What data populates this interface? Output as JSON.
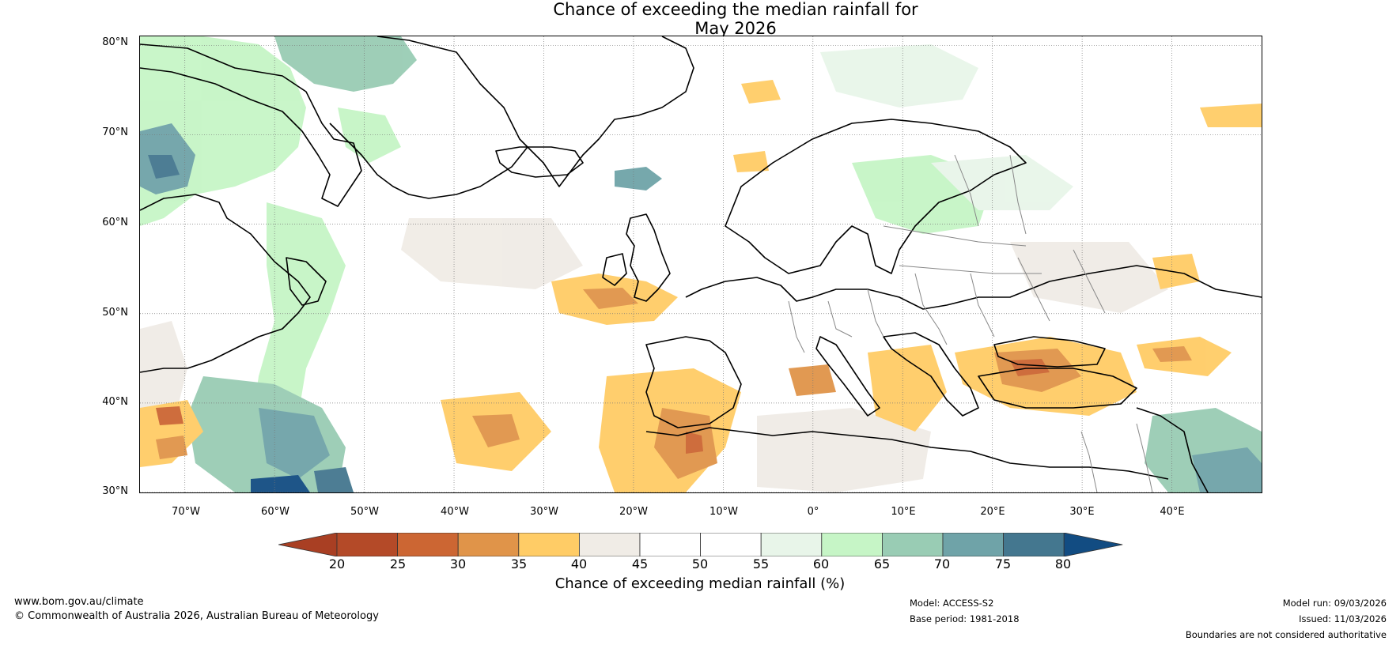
{
  "title": {
    "line1": "Chance of exceeding the median rainfall for",
    "line2": "May 2026"
  },
  "map": {
    "lat_labels": [
      "80°N",
      "70°N",
      "60°N",
      "50°N",
      "40°N",
      "30°N"
    ],
    "lon_labels": [
      "70°W",
      "60°W",
      "50°W",
      "40°W",
      "30°W",
      "20°W",
      "10°W",
      "0°",
      "10°E",
      "20°E",
      "30°E",
      "40°E"
    ],
    "lon_range": [
      -75,
      50
    ],
    "lat_range": [
      30,
      81
    ],
    "gridlines": "dotted"
  },
  "colorbar": {
    "ticks": [
      "20",
      "25",
      "30",
      "35",
      "40",
      "45",
      "50",
      "55",
      "60",
      "65",
      "70",
      "75",
      "80"
    ],
    "colors": [
      "#a93f23",
      "#b44a28",
      "#cc6633",
      "#e09449",
      "#ffcc66",
      "#f0ece6",
      "#ffffff",
      "#ffffff",
      "#e8f5e9",
      "#c6f5c6",
      "#99ccb4",
      "#6fa3a8",
      "#44778f",
      "#124c82"
    ],
    "label": "Chance of exceeding median rainfall (%)"
  },
  "footer": {
    "website": "www.bom.gov.au/climate",
    "copyright": "© Commonwealth of Australia 2026, Australian Bureau of Meteorology",
    "model": "Model: ACCESS-S2",
    "base_period": "Base period: 1981-2018",
    "model_run": "Model run: 09/03/2026",
    "issued": "Issued: 11/03/2026",
    "disclaimer": "Boundaries are not considered authoritative"
  }
}
